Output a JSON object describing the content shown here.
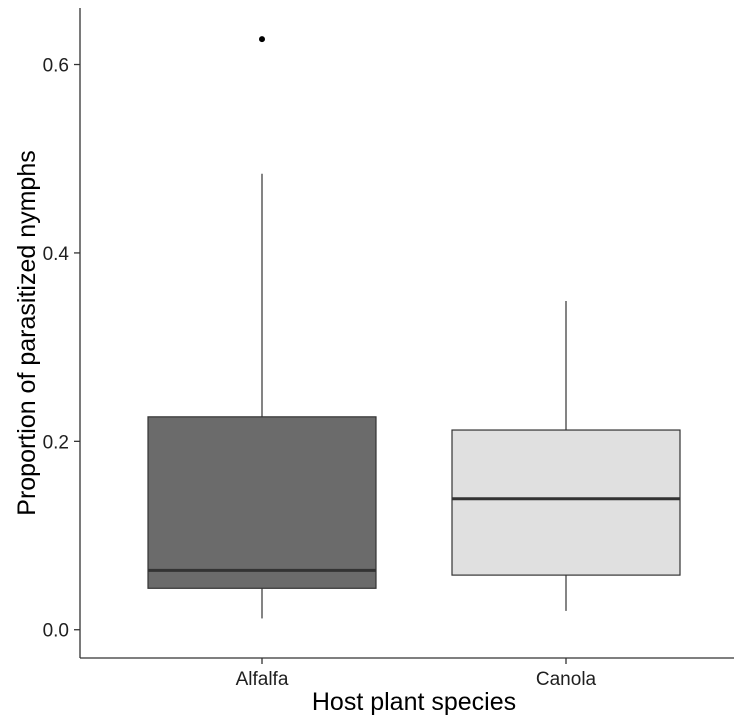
{
  "chart_data": {
    "type": "box",
    "xlabel": "Host plant species",
    "ylabel": "Proportion of parasitized nymphs",
    "ylim": [
      -0.03,
      0.66
    ],
    "yticks": [
      {
        "value": 0.0,
        "label": "0.0"
      },
      {
        "value": 0.2,
        "label": "0.2"
      },
      {
        "value": 0.4,
        "label": "0.4"
      },
      {
        "value": 0.6,
        "label": "0.6"
      }
    ],
    "grid": false,
    "categories": [
      "Alfalfa",
      "Canola"
    ],
    "boxes": [
      {
        "category": "Alfalfa",
        "whisker_low": 0.012,
        "q1": 0.044,
        "median": 0.063,
        "q3": 0.226,
        "whisker_high": 0.484,
        "outliers": [
          0.627
        ],
        "fill": "#6b6b6b"
      },
      {
        "category": "Canola",
        "whisker_low": 0.02,
        "q1": 0.058,
        "median": 0.139,
        "q3": 0.212,
        "whisker_high": 0.349,
        "outliers": [],
        "fill": "#e0e0e0"
      }
    ],
    "colors": {
      "stroke": "#333333",
      "axis": "#333333",
      "text": "#1f1f1f"
    }
  }
}
